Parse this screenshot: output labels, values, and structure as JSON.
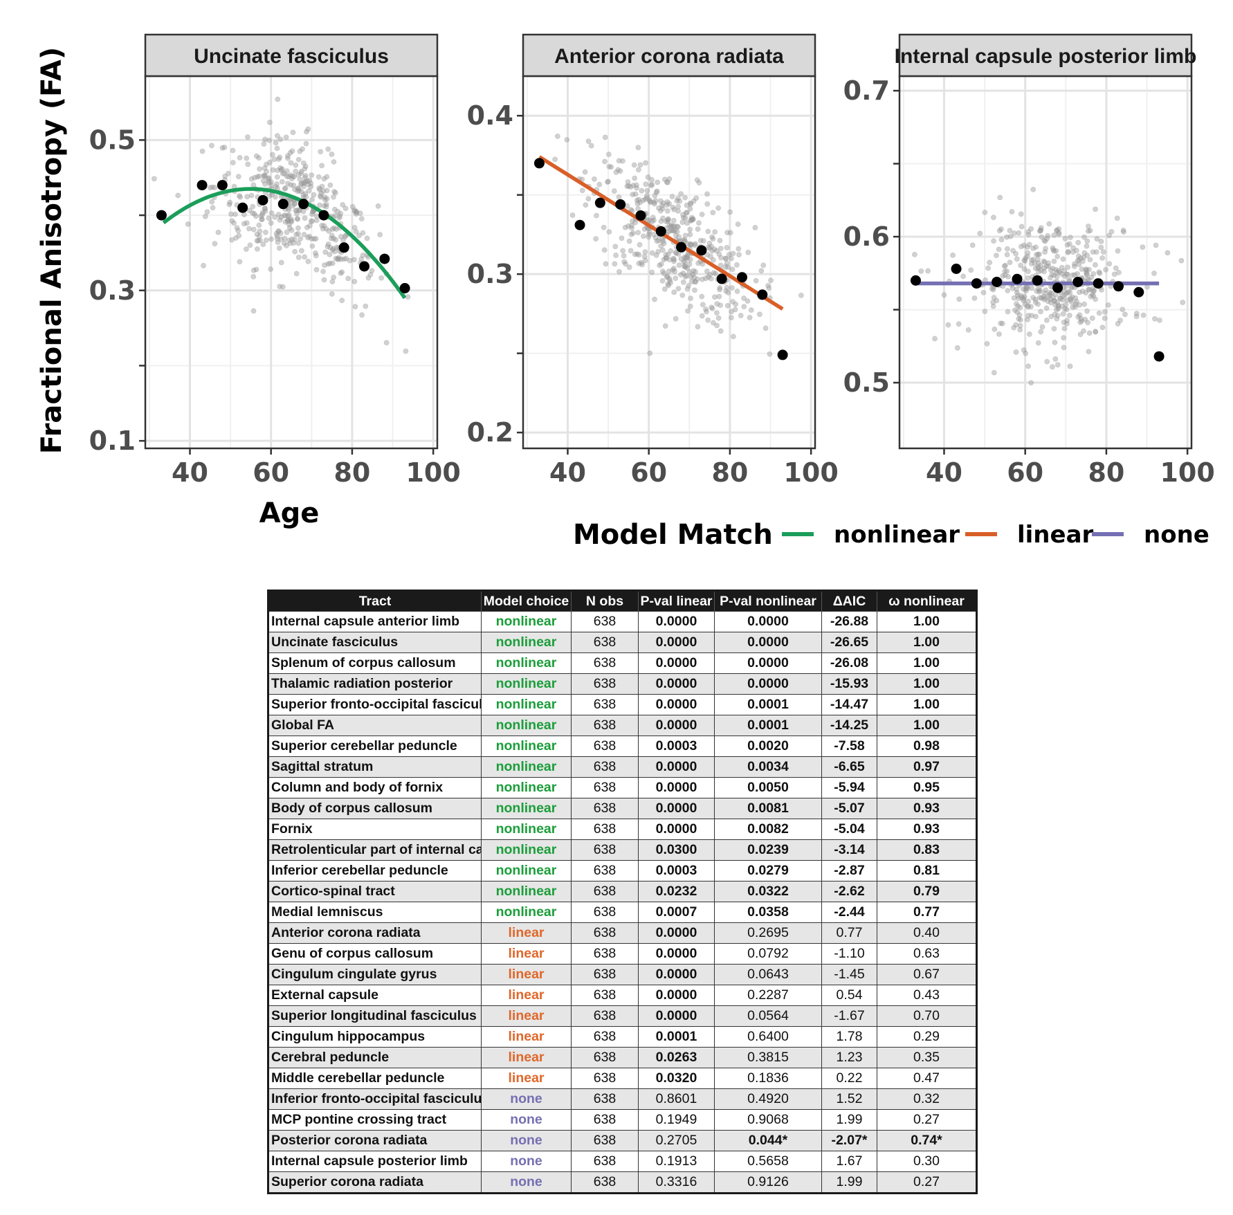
{
  "chart_data": {
    "type": "scatter",
    "ylabel": "Fractional Anisotropy (FA)",
    "xlabel": "Age",
    "xlim": [
      29,
      101
    ],
    "xticks": [
      40,
      60,
      80,
      100
    ],
    "legend": {
      "title": "Model Match",
      "placement": "bottom-right",
      "entries": [
        {
          "label": "nonlinear",
          "color": "#1b9e5a"
        },
        {
          "label": "linear",
          "color": "#d95f28"
        },
        {
          "label": "none",
          "color": "#7570b3"
        }
      ]
    },
    "grid": true,
    "panels": [
      {
        "title": "Uncinate fasciculus",
        "model": "nonlinear",
        "line_color": "#1b9e5a",
        "ylim": [
          0.09,
          0.585
        ],
        "yticks": [
          0.1,
          0.3,
          0.5
        ],
        "yticks_minor": [
          0.2,
          0.4
        ],
        "binned_means": [
          [
            33,
            0.4
          ],
          [
            43,
            0.44
          ],
          [
            48,
            0.44
          ],
          [
            53,
            0.41
          ],
          [
            58,
            0.42
          ],
          [
            63,
            0.415
          ],
          [
            68,
            0.415
          ],
          [
            73,
            0.4
          ],
          [
            78,
            0.357
          ],
          [
            83,
            0.332
          ],
          [
            88,
            0.342
          ],
          [
            93,
            0.303
          ]
        ],
        "fit": {
          "kind": "quadratic",
          "x": [
            33.5,
            55,
            93
          ],
          "y": [
            0.39,
            0.435,
            0.29
          ]
        }
      },
      {
        "title": "Anterior corona radiata",
        "model": "linear",
        "line_color": "#d95f28",
        "ylim": [
          0.19,
          0.425
        ],
        "yticks": [
          0.2,
          0.3,
          0.4
        ],
        "yticks_minor": [
          0.25,
          0.35
        ],
        "binned_means": [
          [
            33,
            0.37
          ],
          [
            43,
            0.331
          ],
          [
            48,
            0.345
          ],
          [
            53,
            0.344
          ],
          [
            58,
            0.337
          ],
          [
            63,
            0.327
          ],
          [
            68,
            0.317
          ],
          [
            73,
            0.315
          ],
          [
            78,
            0.297
          ],
          [
            83,
            0.298
          ],
          [
            88,
            0.287
          ],
          [
            93,
            0.249
          ]
        ],
        "fit": {
          "kind": "linear",
          "x": [
            33,
            93
          ],
          "y": [
            0.374,
            0.278
          ]
        }
      },
      {
        "title": "Internal capsule posterior limb",
        "model": "none",
        "line_color": "#7570b3",
        "ylim": [
          0.455,
          0.71
        ],
        "yticks": [
          0.5,
          0.6,
          0.7
        ],
        "yticks_minor": [
          0.55,
          0.65
        ],
        "binned_means": [
          [
            33,
            0.57
          ],
          [
            43,
            0.578
          ],
          [
            48,
            0.568
          ],
          [
            53,
            0.569
          ],
          [
            58,
            0.571
          ],
          [
            63,
            0.57
          ],
          [
            68,
            0.565
          ],
          [
            73,
            0.569
          ],
          [
            78,
            0.568
          ],
          [
            83,
            0.566
          ],
          [
            88,
            0.562
          ],
          [
            93,
            0.518
          ]
        ],
        "fit": {
          "kind": "constant",
          "x": [
            33,
            93
          ],
          "y": [
            0.568,
            0.568
          ]
        }
      }
    ]
  },
  "table": {
    "headers": [
      "Tract",
      "Model choice",
      "N obs",
      "P-val linear",
      "P-val nonlinear",
      "ΔAIC",
      "ω nonlinear"
    ],
    "choice_colors": {
      "nonlinear": "#1b9e3a",
      "linear": "#e0672a",
      "none": "#7570b3"
    },
    "rows": [
      {
        "tract": "Internal capsule anterior limb",
        "choice": "nonlinear",
        "n": "638",
        "p_lin": "0.0000",
        "p_nonlin": "0.0000",
        "daic": "-26.88",
        "omega": "1.00",
        "bold": [
          true,
          true,
          true,
          true
        ]
      },
      {
        "tract": "Uncinate fasciculus",
        "choice": "nonlinear",
        "n": "638",
        "p_lin": "0.0000",
        "p_nonlin": "0.0000",
        "daic": "-26.65",
        "omega": "1.00",
        "bold": [
          true,
          true,
          true,
          true
        ]
      },
      {
        "tract": "Splenum of corpus callosum",
        "choice": "nonlinear",
        "n": "638",
        "p_lin": "0.0000",
        "p_nonlin": "0.0000",
        "daic": "-26.08",
        "omega": "1.00",
        "bold": [
          true,
          true,
          true,
          true
        ]
      },
      {
        "tract": "Thalamic radiation posterior",
        "choice": "nonlinear",
        "n": "638",
        "p_lin": "0.0000",
        "p_nonlin": "0.0000",
        "daic": "-15.93",
        "omega": "1.00",
        "bold": [
          true,
          true,
          true,
          true
        ]
      },
      {
        "tract": "Superior fronto-occipital fasciculus",
        "choice": "nonlinear",
        "n": "638",
        "p_lin": "0.0000",
        "p_nonlin": "0.0001",
        "daic": "-14.47",
        "omega": "1.00",
        "bold": [
          true,
          true,
          true,
          true
        ]
      },
      {
        "tract": "Global FA",
        "choice": "nonlinear",
        "n": "638",
        "p_lin": "0.0000",
        "p_nonlin": "0.0001",
        "daic": "-14.25",
        "omega": "1.00",
        "bold": [
          true,
          true,
          true,
          true
        ]
      },
      {
        "tract": "Superior cerebellar peduncle",
        "choice": "nonlinear",
        "n": "638",
        "p_lin": "0.0003",
        "p_nonlin": "0.0020",
        "daic": "-7.58",
        "omega": "0.98",
        "bold": [
          true,
          true,
          true,
          true
        ]
      },
      {
        "tract": "Sagittal stratum",
        "choice": "nonlinear",
        "n": "638",
        "p_lin": "0.0000",
        "p_nonlin": "0.0034",
        "daic": "-6.65",
        "omega": "0.97",
        "bold": [
          true,
          true,
          true,
          true
        ]
      },
      {
        "tract": "Column and body of fornix",
        "choice": "nonlinear",
        "n": "638",
        "p_lin": "0.0000",
        "p_nonlin": "0.0050",
        "daic": "-5.94",
        "omega": "0.95",
        "bold": [
          true,
          true,
          true,
          true
        ]
      },
      {
        "tract": "Body of corpus callosum",
        "choice": "nonlinear",
        "n": "638",
        "p_lin": "0.0000",
        "p_nonlin": "0.0081",
        "daic": "-5.07",
        "omega": "0.93",
        "bold": [
          true,
          true,
          true,
          true
        ]
      },
      {
        "tract": "Fornix",
        "choice": "nonlinear",
        "n": "638",
        "p_lin": "0.0000",
        "p_nonlin": "0.0082",
        "daic": "-5.04",
        "omega": "0.93",
        "bold": [
          true,
          true,
          true,
          true
        ]
      },
      {
        "tract": "Retrolenticular part of internal capsule",
        "choice": "nonlinear",
        "n": "638",
        "p_lin": "0.0300",
        "p_nonlin": "0.0239",
        "daic": "-3.14",
        "omega": "0.83",
        "bold": [
          true,
          true,
          true,
          true
        ]
      },
      {
        "tract": "Inferior cerebellar peduncle",
        "choice": "nonlinear",
        "n": "638",
        "p_lin": "0.0003",
        "p_nonlin": "0.0279",
        "daic": "-2.87",
        "omega": "0.81",
        "bold": [
          true,
          true,
          true,
          true
        ]
      },
      {
        "tract": "Cortico-spinal tract",
        "choice": "nonlinear",
        "n": "638",
        "p_lin": "0.0232",
        "p_nonlin": "0.0322",
        "daic": "-2.62",
        "omega": "0.79",
        "bold": [
          true,
          true,
          true,
          true
        ]
      },
      {
        "tract": "Medial lemniscus",
        "choice": "nonlinear",
        "n": "638",
        "p_lin": "0.0007",
        "p_nonlin": "0.0358",
        "daic": "-2.44",
        "omega": "0.77",
        "bold": [
          true,
          true,
          true,
          true
        ]
      },
      {
        "tract": "Anterior corona radiata",
        "choice": "linear",
        "n": "638",
        "p_lin": "0.0000",
        "p_nonlin": "0.2695",
        "daic": "0.77",
        "omega": "0.40",
        "bold": [
          true,
          false,
          false,
          false
        ]
      },
      {
        "tract": "Genu of corpus callosum",
        "choice": "linear",
        "n": "638",
        "p_lin": "0.0000",
        "p_nonlin": "0.0792",
        "daic": "-1.10",
        "omega": "0.63",
        "bold": [
          true,
          false,
          false,
          false
        ]
      },
      {
        "tract": "Cingulum cingulate gyrus",
        "choice": "linear",
        "n": "638",
        "p_lin": "0.0000",
        "p_nonlin": "0.0643",
        "daic": "-1.45",
        "omega": "0.67",
        "bold": [
          true,
          false,
          false,
          false
        ]
      },
      {
        "tract": "External capsule",
        "choice": "linear",
        "n": "638",
        "p_lin": "0.0000",
        "p_nonlin": "0.2287",
        "daic": "0.54",
        "omega": "0.43",
        "bold": [
          true,
          false,
          false,
          false
        ]
      },
      {
        "tract": "Superior longitudinal fasciculus",
        "choice": "linear",
        "n": "638",
        "p_lin": "0.0000",
        "p_nonlin": "0.0564",
        "daic": "-1.67",
        "omega": "0.70",
        "bold": [
          true,
          false,
          false,
          false
        ]
      },
      {
        "tract": "Cingulum hippocampus",
        "choice": "linear",
        "n": "638",
        "p_lin": "0.0001",
        "p_nonlin": "0.6400",
        "daic": "1.78",
        "omega": "0.29",
        "bold": [
          true,
          false,
          false,
          false
        ]
      },
      {
        "tract": "Cerebral peduncle",
        "choice": "linear",
        "n": "638",
        "p_lin": "0.0263",
        "p_nonlin": "0.3815",
        "daic": "1.23",
        "omega": "0.35",
        "bold": [
          true,
          false,
          false,
          false
        ]
      },
      {
        "tract": "Middle cerebellar peduncle",
        "choice": "linear",
        "n": "638",
        "p_lin": "0.0320",
        "p_nonlin": "0.1836",
        "daic": "0.22",
        "omega": "0.47",
        "bold": [
          true,
          false,
          false,
          false
        ]
      },
      {
        "tract": "Inferior fronto-occipital fasciculus",
        "choice": "none",
        "n": "638",
        "p_lin": "0.8601",
        "p_nonlin": "0.4920",
        "daic": "1.52",
        "omega": "0.32",
        "bold": [
          false,
          false,
          false,
          false
        ]
      },
      {
        "tract": "MCP pontine crossing tract",
        "choice": "none",
        "n": "638",
        "p_lin": "0.1949",
        "p_nonlin": "0.9068",
        "daic": "1.99",
        "omega": "0.27",
        "bold": [
          false,
          false,
          false,
          false
        ]
      },
      {
        "tract": "Posterior corona radiata",
        "choice": "none",
        "n": "638",
        "p_lin": "0.2705",
        "p_nonlin": "0.044*",
        "daic": "-2.07*",
        "omega": "0.74*",
        "bold": [
          false,
          true,
          true,
          true
        ]
      },
      {
        "tract": "Internal capsule posterior limb",
        "choice": "none",
        "n": "638",
        "p_lin": "0.1913",
        "p_nonlin": "0.5658",
        "daic": "1.67",
        "omega": "0.30",
        "bold": [
          false,
          false,
          false,
          false
        ]
      },
      {
        "tract": "Superior corona radiata",
        "choice": "none",
        "n": "638",
        "p_lin": "0.3316",
        "p_nonlin": "0.9126",
        "daic": "1.99",
        "omega": "0.27",
        "bold": [
          false,
          false,
          false,
          false
        ]
      }
    ]
  }
}
